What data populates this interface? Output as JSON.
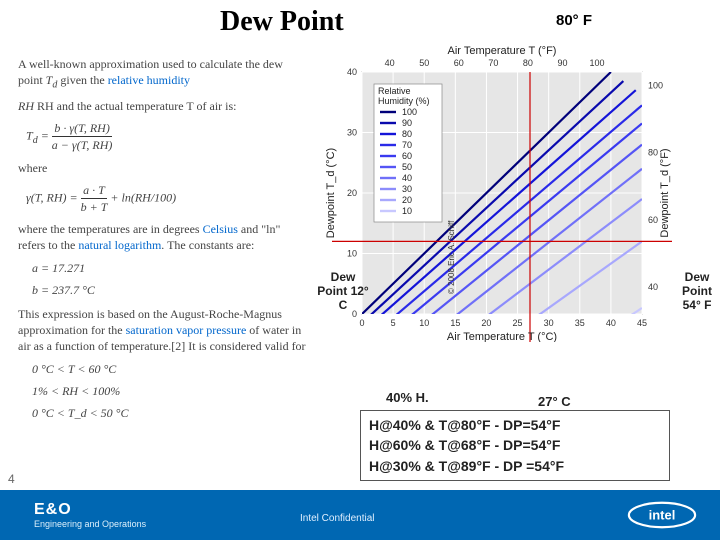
{
  "title": "Dew Point",
  "temp_right_label": "80° F",
  "left_column": {
    "p1_pre": "A well-known approximation used to calculate the dew point ",
    "p1_td": "T",
    "p1_mid": " given the ",
    "p1_link1": "relative humidity",
    "p2": "RH and the actual temperature T of air is:",
    "formula_td": "T_d = b·γ(T,RH) / (a − γ(T,RH))",
    "where": "where",
    "formula_gamma": "γ(T,RH) = a·T / (b + T) + ln(RH/100)",
    "p3_pre": "where the temperatures are in degrees ",
    "p3_link1": "Celsius",
    "p3_mid": " and \"ln\" refers to the ",
    "p3_link2": "natural logarithm",
    "p3_post": ". The constants are:",
    "const_a": "a = 17.271",
    "const_b": "b = 237.7 °C",
    "p4_pre": "This expression is based on the August-Roche-Magnus approximation for the ",
    "p4_link": "saturation vapor pressure",
    "p4_post": " of water in air as a function of temperature.[2] It is considered valid for",
    "range1": "0 °C < T < 60 °C",
    "range2": "1% < RH < 100%",
    "range3": "0 °C < T_d < 50 °C"
  },
  "chart": {
    "type": "line",
    "x_top_label": "Air Temperature T (°F)",
    "x_bottom_label": "Air Temperature T (°C)",
    "y_left_label": "Dewpoint T_d (°C)",
    "y_right_label": "Dewpoint T_d (°F)",
    "xlim_c": [
      0,
      45
    ],
    "ylim_c": [
      0,
      40
    ],
    "xtick_c": [
      0,
      5,
      10,
      15,
      20,
      25,
      30,
      35,
      40,
      45
    ],
    "ytick_c": [
      0,
      10,
      20,
      30,
      40
    ],
    "xtick_f": [
      40,
      50,
      60,
      70,
      80,
      90,
      100
    ],
    "ytick_f": [
      40,
      60,
      80,
      100
    ],
    "background_color": "#e6e6e6",
    "grid_color": "#ffffff",
    "grid_weight": 1,
    "line_width": 2.2,
    "series": [
      {
        "rh": 100,
        "color": "#00007a",
        "start": [
          0,
          0
        ],
        "end": [
          40,
          40
        ]
      },
      {
        "rh": 90,
        "color": "#0a0aad",
        "start": [
          0,
          -1.5
        ],
        "end": [
          42,
          38.5
        ]
      },
      {
        "rh": 80,
        "color": "#1414d8",
        "start": [
          0,
          -3
        ],
        "end": [
          44,
          37
        ]
      },
      {
        "rh": 70,
        "color": "#2a2ae8",
        "start": [
          0,
          -5
        ],
        "end": [
          45,
          34.5
        ]
      },
      {
        "rh": 60,
        "color": "#3a3af0",
        "start": [
          0,
          -7
        ],
        "end": [
          45,
          31.5
        ]
      },
      {
        "rh": 50,
        "color": "#5555f5",
        "start": [
          0,
          -9.5
        ],
        "end": [
          45,
          28
        ]
      },
      {
        "rh": 40,
        "color": "#7070f8",
        "start": [
          0,
          -12.5
        ],
        "end": [
          45,
          24
        ]
      },
      {
        "rh": 30,
        "color": "#8c8cfb",
        "start": [
          0,
          -16
        ],
        "end": [
          45,
          19
        ]
      },
      {
        "rh": 20,
        "color": "#a8a8fd",
        "start": [
          0,
          -21
        ],
        "end": [
          45,
          12
        ]
      },
      {
        "rh": 10,
        "color": "#c8c8ff",
        "start": [
          0,
          -30
        ],
        "end": [
          45,
          1
        ]
      }
    ],
    "legend_title": "Relative Humidity (%)",
    "legend_font": 9,
    "red_vline_c": 27,
    "red_hline_c": 12,
    "red_color": "#cc0000",
    "copyright": "© 2008 Eric A. Schiff"
  },
  "annotations": {
    "dp_left": "Dew Point 12° C",
    "dp_right": "Dew Point 54° F",
    "humidity_40": "40% H.",
    "temp_27c": "27° C"
  },
  "calc_box": {
    "line1": "H@40% & T@80°F - DP=54°F",
    "line2": "H@60% & T@68°F - DP=54°F",
    "line3": "H@30% & T@89°F - DP =54°F"
  },
  "footer": {
    "slide_no": "4",
    "eo_big": "E&O",
    "eo_small": "Engineering and Operations",
    "confidential": "Intel Confidential",
    "logo_text": "intel"
  },
  "colors": {
    "footer_bg": "#0067b2",
    "link": "#0066cc"
  }
}
